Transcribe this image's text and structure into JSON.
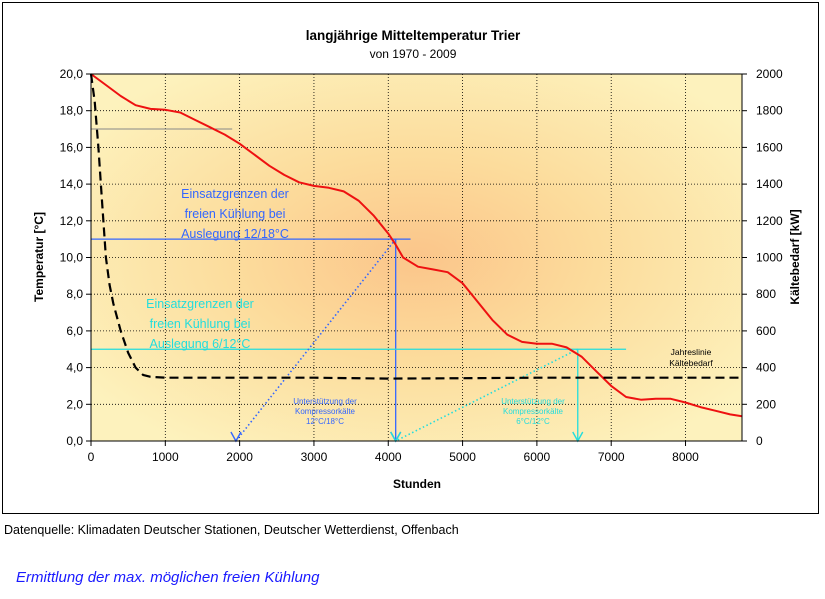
{
  "chart_data": {
    "type": "line",
    "title": "langjährige Mitteltemperatur Trier",
    "subtitle": "von 1970 - 2009",
    "xlabel": "Stunden",
    "ylabel": "Temperatur [°C]",
    "y2label": "Kältebedarf [kW]",
    "xlim": [
      0,
      8760
    ],
    "ylim": [
      0,
      20
    ],
    "y2lim": [
      0,
      2000
    ],
    "grid": true,
    "x_ticks": [
      0,
      1000,
      2000,
      3000,
      4000,
      5000,
      6000,
      7000,
      8000
    ],
    "x_tick_labels": [
      "0",
      "1000",
      "2000",
      "3000",
      "4000",
      "5000",
      "6000",
      "7000",
      "8000"
    ],
    "y_ticks": [
      0,
      2,
      4,
      6,
      8,
      10,
      12,
      14,
      16,
      18,
      20
    ],
    "y_tick_labels": [
      "0,0",
      "2,0",
      "4,0",
      "6,0",
      "8,0",
      "10,0",
      "12,0",
      "14,0",
      "16,0",
      "18,0",
      "20,0"
    ],
    "y2_ticks": [
      0,
      200,
      400,
      600,
      800,
      1000,
      1200,
      1400,
      1600,
      1800,
      2000
    ],
    "y2_tick_labels": [
      "0",
      "200",
      "400",
      "600",
      "800",
      "1000",
      "1200",
      "1400",
      "1600",
      "1800",
      "2000"
    ],
    "series": [
      {
        "color": "#ee1111",
        "axis": "left",
        "style": "solid",
        "x": [
          0,
          200,
          400,
          600,
          800,
          1000,
          1200,
          1400,
          1600,
          1800,
          2000,
          2200,
          2400,
          2600,
          2800,
          3000,
          3200,
          3400,
          3600,
          3800,
          4000,
          4100,
          4200,
          4400,
          4600,
          4800,
          5000,
          5200,
          5400,
          5600,
          5800,
          6000,
          6200,
          6400,
          6600,
          6800,
          7000,
          7200,
          7400,
          7600,
          7800,
          8000,
          8200,
          8400,
          8600,
          8760
        ],
        "y": [
          20.0,
          19.4,
          18.8,
          18.3,
          18.1,
          18.05,
          17.9,
          17.5,
          17.1,
          16.7,
          16.2,
          15.6,
          15.0,
          14.5,
          14.1,
          13.9,
          13.8,
          13.6,
          13.1,
          12.3,
          11.3,
          10.7,
          10.0,
          9.5,
          9.35,
          9.2,
          8.6,
          7.6,
          6.6,
          5.8,
          5.4,
          5.3,
          5.3,
          5.1,
          4.6,
          3.8,
          3.0,
          2.4,
          2.25,
          2.3,
          2.3,
          2.1,
          1.85,
          1.65,
          1.45,
          1.35
        ]
      },
      {
        "color": "#000000",
        "axis": "right",
        "style": "dashed",
        "x": [
          0,
          50,
          100,
          150,
          200,
          250,
          300,
          400,
          500,
          600,
          700,
          800,
          1000,
          2000,
          3000,
          4000,
          5000,
          6000,
          7000,
          8000,
          8760
        ],
        "y": [
          2000,
          1850,
          1600,
          1300,
          1000,
          850,
          750,
          600,
          480,
          400,
          360,
          350,
          345,
          345,
          345,
          340,
          342,
          345,
          345,
          345,
          345
        ]
      }
    ],
    "annotations": {
      "blue_label": [
        "Einsatzgrenzen der",
        "freien Kühlung bei",
        "Auslegung 12/18°C"
      ],
      "cyan_label": [
        "Einsatzgrenzen der",
        "freien Kühlung bei",
        "Auslegung 6/12°C"
      ],
      "blue_small": [
        "Unterstützung der",
        "Kompressorkälte",
        "12°C/18°C"
      ],
      "cyan_small": [
        "Unterstützung der",
        "Kompressorkälte",
        "6°C/12°C"
      ],
      "black_small": [
        "Jahreslinie",
        "Kältebedarf"
      ],
      "blue_color": "#3366ff",
      "cyan_color": "#22dddd",
      "blue_hline_y": 11.0,
      "blue_hline_x": [
        0,
        4300
      ],
      "blue_vline_x": 4100,
      "blue_arrow_x": 1950,
      "cyan_hline_y": 5.0,
      "cyan_hline_x": [
        0,
        7200
      ],
      "cyan_vline_x": 6550,
      "cyan_arrow_x": 4100,
      "grey_hline_y": 17.0,
      "grey_hline_x": [
        0,
        1900
      ]
    }
  },
  "footer": {
    "source": "Datenquelle: Klimadaten Deutscher Stationen, Deutscher Wetterdienst, Offenbach",
    "caption": "Ermittlung der max. möglichen freien Kühlung"
  }
}
